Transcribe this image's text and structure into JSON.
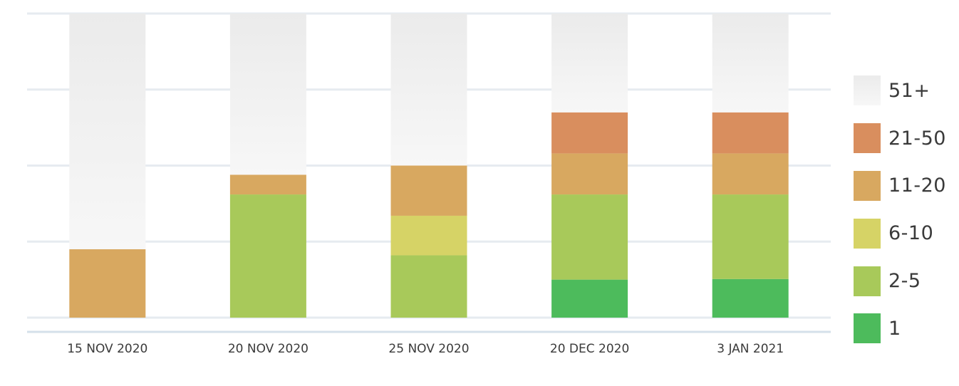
{
  "chart_data": {
    "type": "bar",
    "stacked": true,
    "title": "",
    "xlabel": "",
    "ylabel": "",
    "ylim": [
      0,
      100
    ],
    "grid": true,
    "legend_position": "right",
    "categories": [
      "15 NOV 2020",
      "20 NOV 2020",
      "25 NOV 2020",
      "20 DEC 2020",
      "3 JAN 2021"
    ],
    "series": [
      {
        "name": "1",
        "color": "#4dbb5c",
        "values": [
          0,
          0,
          0,
          12.5,
          12.7
        ]
      },
      {
        "name": "2-5",
        "color": "#a8c95a",
        "values": [
          0,
          40.5,
          20.5,
          28,
          27.8
        ]
      },
      {
        "name": "6-10",
        "color": "#d6d366",
        "values": [
          0,
          0,
          13,
          0,
          0
        ]
      },
      {
        "name": "11-20",
        "color": "#d8a860",
        "values": [
          22.5,
          6.5,
          16.5,
          13.5,
          13.5
        ]
      },
      {
        "name": "21-50",
        "color": "#d98e5e",
        "values": [
          0,
          0,
          0,
          13.5,
          13.5
        ]
      },
      {
        "name": "51+",
        "color": "#eeeeee",
        "values": [
          77.5,
          53,
          50,
          32.5,
          32.5
        ]
      }
    ]
  }
}
